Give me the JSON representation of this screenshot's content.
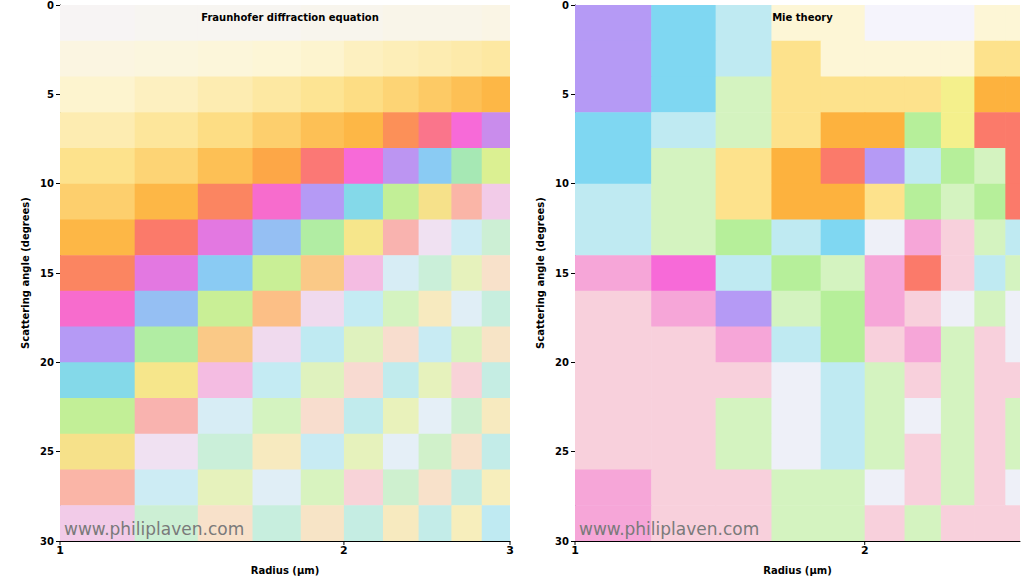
{
  "chart_data": [
    {
      "type": "heatmap",
      "title": "Fraunhofer diffraction equation",
      "xlabel": "Radius (µm)",
      "ylabel": "Scattering angle (degrees)",
      "annotation": "www.philiplaven.com",
      "log": "x",
      "xlim": [
        1,
        3
      ],
      "xticks": [
        1,
        2,
        3
      ],
      "ylim": [
        0,
        30
      ],
      "yticks": [
        0,
        5,
        10,
        15,
        20,
        25,
        30
      ],
      "x_edges": [
        1.0,
        1.2,
        1.4,
        1.6,
        1.8,
        2.0,
        2.2,
        2.4,
        2.6,
        2.8,
        3.0
      ],
      "y_edges": [
        0,
        2,
        4,
        6,
        8,
        10,
        12,
        14,
        16,
        18,
        20,
        22,
        24,
        26,
        28,
        30
      ],
      "zlim": [
        0,
        16
      ],
      "colorscale": [
        "#f5f4fc",
        "#fdf6d6",
        "#fde28c",
        "#fdb23e",
        "#fb7a6a",
        "#f76ad8",
        "#b59af5",
        "#7fd7f2",
        "#b6ef9a",
        "#f4f08c",
        "#fcbf86",
        "#f6a6d8",
        "#eef0f8",
        "#bfeaf2",
        "#d4f3c0",
        "#f7f1b8",
        "#f8d0dc"
      ],
      "cells": [
        [
          0.2,
          0.3,
          0.3,
          0.3,
          0.4,
          0.4,
          0.5,
          0.5,
          0.5,
          0.6
        ],
        [
          0.7,
          0.8,
          0.9,
          1.0,
          1.1,
          1.3,
          1.4,
          1.5,
          1.6,
          1.7
        ],
        [
          1.1,
          1.3,
          1.5,
          1.7,
          1.9,
          2.1,
          2.3,
          2.5,
          2.7,
          2.9
        ],
        [
          1.5,
          1.8,
          2.1,
          2.4,
          2.7,
          2.9,
          3.6,
          4.3,
          5.0,
          5.7
        ],
        [
          2.0,
          2.3,
          2.7,
          3.2,
          4.1,
          5.0,
          5.9,
          6.8,
          7.7,
          8.6
        ],
        [
          2.4,
          2.9,
          3.8,
          4.9,
          6.0,
          7.1,
          8.2,
          9.3,
          10.4,
          11.5
        ],
        [
          2.9,
          4.0,
          5.3,
          6.6,
          7.9,
          9.2,
          10.5,
          11.8,
          12.7,
          13.6
        ],
        [
          3.8,
          5.3,
          6.8,
          8.3,
          9.8,
          11.3,
          12.5,
          13.5,
          14.5,
          15.5
        ],
        [
          4.9,
          6.6,
          8.3,
          10.0,
          11.7,
          12.9,
          14.0,
          15.2,
          12.3,
          13.4
        ],
        [
          6.0,
          7.9,
          9.8,
          11.7,
          13.0,
          14.3,
          15.6,
          12.8,
          14.1,
          15.4
        ],
        [
          7.1,
          9.2,
          11.3,
          12.9,
          14.3,
          15.7,
          13.1,
          14.5,
          15.9,
          13.3
        ],
        [
          8.2,
          10.5,
          12.5,
          14.0,
          15.6,
          13.1,
          14.6,
          12.2,
          13.7,
          15.2
        ],
        [
          9.3,
          11.8,
          13.5,
          15.2,
          12.8,
          14.5,
          12.2,
          13.8,
          15.5,
          13.2
        ],
        [
          10.4,
          12.7,
          14.5,
          12.3,
          14.1,
          15.9,
          13.7,
          15.5,
          13.3,
          15.1
        ],
        [
          11.5,
          13.6,
          15.5,
          13.4,
          15.4,
          13.3,
          15.2,
          13.2,
          15.1,
          13.0
        ]
      ]
    },
    {
      "type": "heatmap",
      "title": "Mie theory",
      "xlabel": "Radius (µm)",
      "ylabel": "Scattering angle (degrees)",
      "annotation": "www.philiplaven.com",
      "log": "x",
      "xlim": [
        1,
        2.9
      ],
      "xticks": [
        1,
        2
      ],
      "ylim": [
        0,
        30
      ],
      "yticks": [
        0,
        5,
        10,
        15,
        20,
        25,
        30
      ],
      "x_edges": [
        1.0,
        1.2,
        1.4,
        1.6,
        1.8,
        2.0,
        2.2,
        2.4,
        2.6,
        2.8,
        3.0
      ],
      "y_edges": [
        0,
        2,
        4,
        6,
        8,
        10,
        12,
        14,
        16,
        18,
        20,
        22,
        24,
        26,
        28,
        30
      ],
      "zlim": [
        0,
        16
      ],
      "colorscale": [
        "#f5f4fc",
        "#fdf6d6",
        "#fde28c",
        "#fdb23e",
        "#fb7a6a",
        "#f76ad8",
        "#b59af5",
        "#7fd7f2",
        "#b6ef9a",
        "#f4f08c",
        "#fcbf86",
        "#f6a6d8",
        "#eef0f8",
        "#bfeaf2",
        "#d4f3c0",
        "#f7f1b8",
        "#f8d0dc"
      ],
      "cells": [
        [
          6,
          7,
          13,
          1,
          1,
          0,
          0,
          0,
          1,
          1
        ],
        [
          6,
          7,
          13,
          2,
          1,
          1,
          1,
          1,
          2,
          2
        ],
        [
          6,
          7,
          14,
          2,
          2,
          2,
          2,
          9,
          3,
          3
        ],
        [
          7,
          13,
          14,
          2,
          3,
          3,
          8,
          9,
          4,
          4
        ],
        [
          7,
          14,
          2,
          3,
          4,
          6,
          13,
          8,
          14,
          4
        ],
        [
          13,
          14,
          2,
          3,
          3,
          2,
          8,
          14,
          8,
          4
        ],
        [
          13,
          14,
          8,
          13,
          7,
          12,
          11,
          16,
          14,
          13
        ],
        [
          11,
          5,
          13,
          8,
          14,
          11,
          4,
          16,
          13,
          14
        ],
        [
          16,
          11,
          6,
          14,
          8,
          11,
          16,
          12,
          14,
          12
        ],
        [
          16,
          16,
          11,
          13,
          8,
          16,
          11,
          14,
          16,
          12
        ],
        [
          16,
          16,
          16,
          12,
          13,
          14,
          16,
          14,
          16,
          16
        ],
        [
          16,
          16,
          14,
          12,
          13,
          14,
          12,
          14,
          16,
          14
        ],
        [
          16,
          16,
          14,
          12,
          13,
          14,
          16,
          14,
          16,
          14
        ],
        [
          11,
          16,
          16,
          14,
          14,
          12,
          16,
          14,
          16,
          12
        ],
        [
          11,
          16,
          16,
          14,
          14,
          16,
          14,
          16,
          16,
          16
        ]
      ]
    }
  ]
}
